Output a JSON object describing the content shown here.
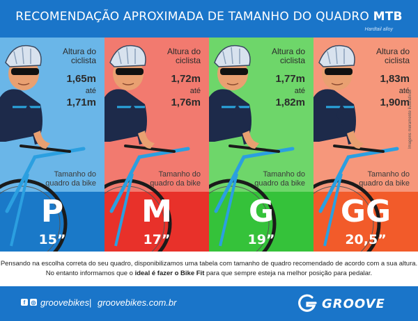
{
  "header": {
    "title_main": "RECOMENDAÇÃO APROXIMADA DE TAMANHO DO QUADRO ",
    "title_bold": "MTB",
    "subtitle": "Hardtail alloy"
  },
  "panels": [
    {
      "height_label": "Altura do ciclista",
      "height_min": "1,65m",
      "ate": "até",
      "height_max": "1,71m",
      "frame_label": "Tamanho do quadro da bike",
      "size": "P",
      "inches": "15”",
      "upper_color": "#6ab6e8",
      "lower_color": "#1a79c8"
    },
    {
      "height_label": "Altura do ciclista",
      "height_min": "1,72m",
      "ate": "até",
      "height_max": "1,76m",
      "frame_label": "Tamanho do quadro da bike",
      "size": "M",
      "inches": "17”",
      "upper_color": "#f27a6f",
      "lower_color": "#e8312a"
    },
    {
      "height_label": "Altura do ciclista",
      "height_min": "1,77m",
      "ate": "até",
      "height_max": "1,82m",
      "frame_label": "Tamanho do quadro da bike",
      "size": "G",
      "inches": "19”",
      "upper_color": "#6ed66a",
      "lower_color": "#35c23a"
    },
    {
      "height_label": "Altura do ciclista",
      "height_min": "1,83m",
      "ate": "até",
      "height_max": "1,90m",
      "frame_label": "Tamanho do quadro da bike",
      "size": "GG",
      "inches": "20,5”",
      "upper_color": "#f6977b",
      "lower_color": "#f25b2a"
    }
  ],
  "side_note": "Imagens meramente ilustrativas",
  "description": {
    "line1": "Pensando na escolha correta do seu quadro, disponibilizamos uma tabela com tamanho de quadro recomendado de acordo com a sua altura.",
    "line2_before": "No entanto informamos que o ",
    "line2_bold": "ideal é fazer o Bike Fit",
    "line2_after": " para que sempre esteja na melhor posição para pedalar."
  },
  "footer": {
    "handle": "groovebikes",
    "separator": "|",
    "site": "groovebikes.com.br",
    "logo_text": "GROOVE",
    "social_icons": [
      "facebook-icon",
      "instagram-icon"
    ]
  },
  "colors": {
    "brand_blue": "#1a75c9",
    "jersey": "#1d2a4a",
    "jersey_accent": "#2aa7e0",
    "skin": "#e9a071",
    "bike_frame": "#2b9fe0"
  }
}
